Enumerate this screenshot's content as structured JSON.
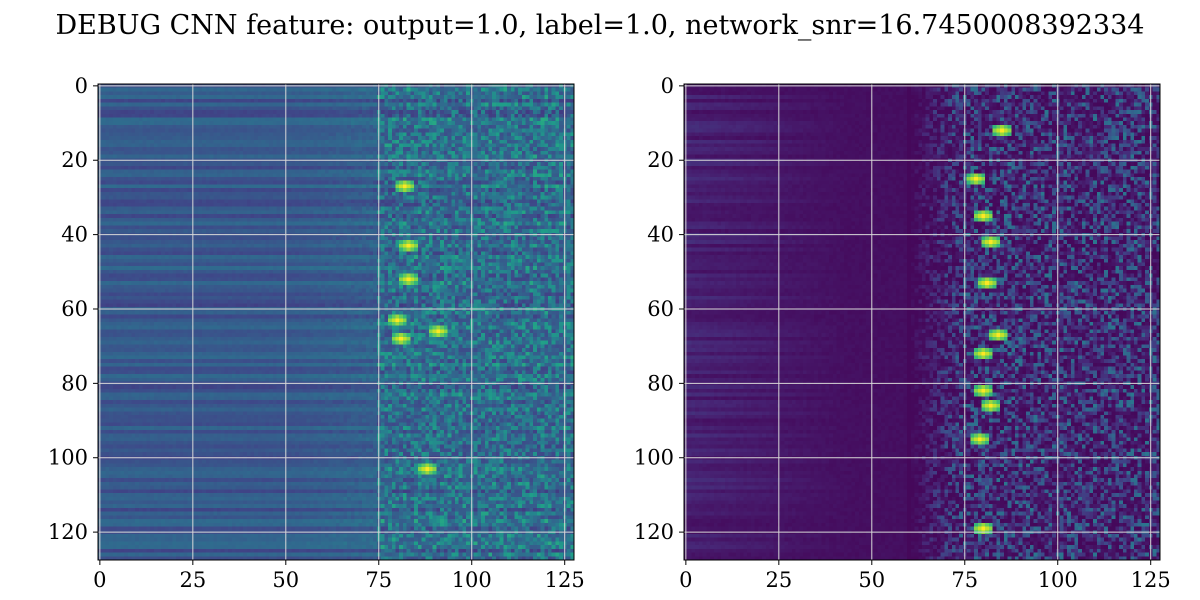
{
  "title": "DEBUG CNN feature: output=1.0, label=1.0, network_snr=16.7450008392334",
  "colormap": "viridis",
  "colors": {
    "background": "#ffffff",
    "grid": "#d8d8d8",
    "axis": "#000000",
    "cmap_low": "#440154",
    "cmap_mid": "#21918c",
    "cmap_high": "#fde725"
  },
  "chart_data": [
    {
      "type": "heatmap",
      "name": "left-panel",
      "rows": 128,
      "cols": 128,
      "xlim": [
        0,
        127
      ],
      "ylim": [
        127,
        0
      ],
      "xticks": [
        0,
        25,
        50,
        75,
        100,
        125
      ],
      "yticks": [
        0,
        20,
        40,
        60,
        80,
        100,
        120
      ],
      "grid": true,
      "xlabel": "",
      "ylabel": "",
      "background_level": 0.26,
      "noise_onset_col": 75,
      "hotspots": [
        [
          80,
          63
        ],
        [
          81,
          68
        ],
        [
          88,
          103
        ],
        [
          83,
          43
        ],
        [
          82,
          27
        ],
        [
          83,
          52
        ],
        [
          91,
          66
        ]
      ]
    },
    {
      "type": "heatmap",
      "name": "right-panel",
      "rows": 128,
      "cols": 128,
      "xlim": [
        0,
        127
      ],
      "ylim": [
        127,
        0
      ],
      "xticks": [
        0,
        25,
        50,
        75,
        100,
        125
      ],
      "yticks": [
        0,
        20,
        40,
        60,
        80,
        100,
        120
      ],
      "grid": true,
      "xlabel": "",
      "ylabel": "",
      "background_level": 0.03,
      "noise_onset_col": 60,
      "hotspots": [
        [
          85,
          12
        ],
        [
          80,
          35
        ],
        [
          82,
          42
        ],
        [
          81,
          53
        ],
        [
          80,
          72
        ],
        [
          80,
          82
        ],
        [
          82,
          86
        ],
        [
          79,
          95
        ],
        [
          80,
          119
        ],
        [
          78,
          25
        ],
        [
          84,
          67
        ]
      ]
    }
  ]
}
